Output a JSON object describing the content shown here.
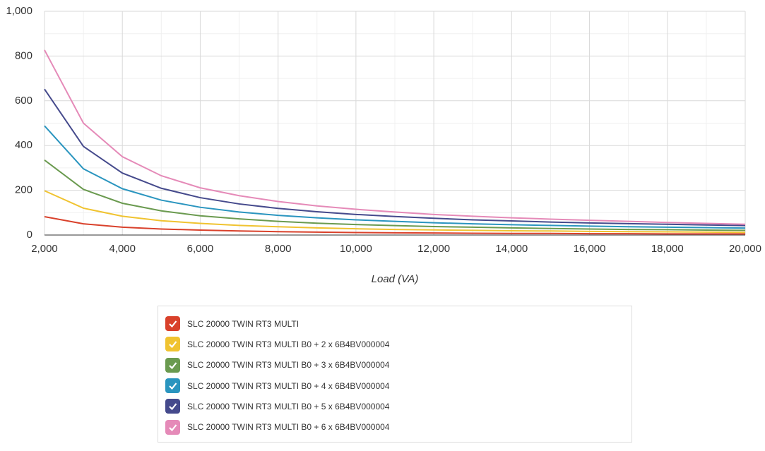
{
  "chart_data": {
    "type": "line",
    "x_label": "Load (VA)",
    "x": [
      2000,
      3000,
      4000,
      5000,
      6000,
      7000,
      8000,
      9000,
      10000,
      11000,
      12000,
      13000,
      14000,
      15000,
      16000,
      17000,
      18000,
      19000,
      20000
    ],
    "xlim": [
      2000,
      20000
    ],
    "xticks": [
      {
        "value": 2000,
        "label": "2,000"
      },
      {
        "value": 4000,
        "label": "4,000"
      },
      {
        "value": 6000,
        "label": "6,000"
      },
      {
        "value": 8000,
        "label": "8,000"
      },
      {
        "value": 10000,
        "label": "10,000"
      },
      {
        "value": 12000,
        "label": "12,000"
      },
      {
        "value": 14000,
        "label": "14,000"
      },
      {
        "value": 16000,
        "label": "16,000"
      },
      {
        "value": 18000,
        "label": "18,000"
      },
      {
        "value": 20000,
        "label": "20,000"
      }
    ],
    "ylim": [
      0,
      1000
    ],
    "yticks": [
      0,
      200,
      400,
      600,
      800,
      {
        "value": 1000,
        "label": "1,000"
      }
    ],
    "grid": true,
    "minor_grid": true,
    "series": [
      {
        "name": "SLC 20000 TWIN RT3 MULTI",
        "color": "#d9412b",
        "values": [
          82,
          50,
          35,
          27,
          22,
          18,
          15,
          13,
          11,
          10,
          9,
          8,
          7,
          7,
          6,
          6,
          5,
          5,
          5
        ]
      },
      {
        "name": "SLC 20000 TWIN RT3 MULTI B0 + 2 x 6B4BV000004",
        "color": "#f0c330",
        "values": [
          198,
          120,
          84,
          64,
          52,
          43,
          37,
          32,
          28,
          25,
          23,
          21,
          19,
          18,
          16,
          15,
          14,
          13,
          12
        ]
      },
      {
        "name": "SLC 20000 TWIN RT3 MULTI B0 + 3 x 6B4BV000004",
        "color": "#6a9a4f",
        "values": [
          335,
          204,
          142,
          108,
          86,
          72,
          61,
          53,
          47,
          42,
          38,
          35,
          32,
          29,
          27,
          25,
          24,
          22,
          21
        ]
      },
      {
        "name": "SLC 20000 TWIN RT3 MULTI B0 + 4 x 6B4BV000004",
        "color": "#2a95bf",
        "values": [
          488,
          296,
          207,
          156,
          124,
          103,
          88,
          77,
          68,
          61,
          55,
          50,
          46,
          43,
          40,
          37,
          35,
          33,
          31
        ]
      },
      {
        "name": "SLC 20000 TWIN RT3 MULTI B0 + 5 x 6B4BV000004",
        "color": "#454a8c",
        "values": [
          652,
          396,
          277,
          209,
          167,
          139,
          119,
          104,
          92,
          83,
          75,
          68,
          63,
          58,
          54,
          51,
          48,
          45,
          42
        ]
      },
      {
        "name": "SLC 20000 TWIN RT3 MULTI B0 + 6 x 6B4BV000004",
        "color": "#e58ab8",
        "values": [
          827,
          500,
          350,
          265,
          211,
          176,
          150,
          130,
          115,
          103,
          92,
          84,
          77,
          71,
          66,
          61,
          56,
          52,
          48
        ]
      }
    ]
  }
}
